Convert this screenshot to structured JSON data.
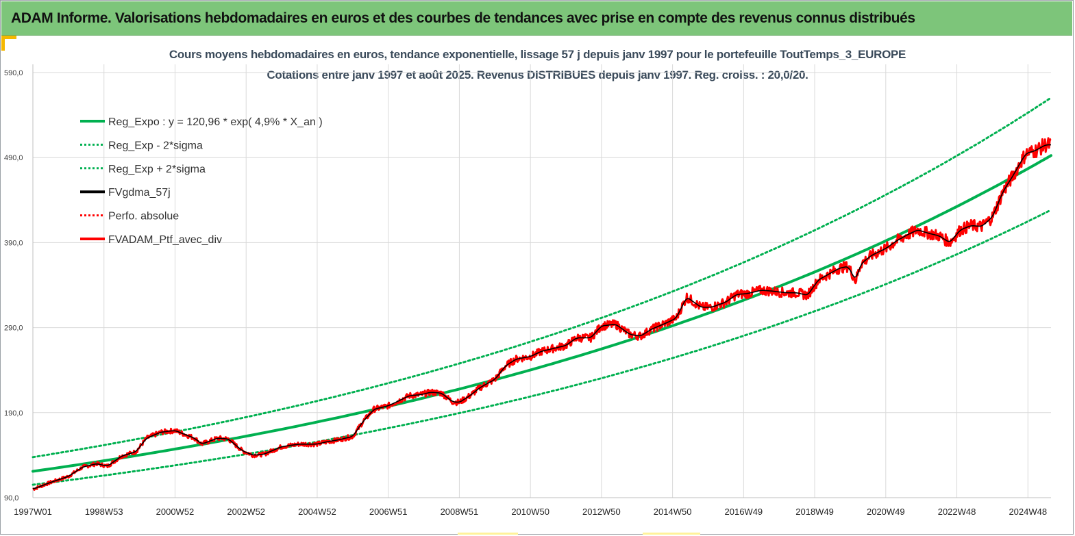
{
  "header": {
    "title": "ADAM Informe. Valorisations hebdomadaires en euros et des courbes de tendances avec prise en compte des revenus connus distribués"
  },
  "chart_data": {
    "type": "line",
    "title": "Cours moyens hebdomadaires  en euros, tendance exponentielle, lissage 57 j depuis janv 1997 pour le portefeuille ToutTemps_3_EUROPE",
    "subtitle": "Cotations  entre janv 1997 et août 2025. Revenus DISTRIBUES depuis janv 1997. Reg. croiss. : 20,0/20.",
    "xlabel": "",
    "ylabel": "",
    "x_range": [
      1997.0,
      2025.65
    ],
    "ylim": [
      90,
      590
    ],
    "y_ticks": [
      "90,0",
      "190,0",
      "290,0",
      "390,0",
      "490,0",
      "590,0"
    ],
    "y_tick_values": [
      90,
      190,
      290,
      390,
      490,
      590
    ],
    "x_ticks": [
      "1997W01",
      "1998W53",
      "2000W52",
      "2002W52",
      "2004W52",
      "2006W51",
      "2008W51",
      "2010W50",
      "2012W50",
      "2014W50",
      "2016W49",
      "2018W49",
      "2020W49",
      "2022W48",
      "2024W48"
    ],
    "x_tick_values": [
      1997.0,
      1999.0,
      2001.0,
      2003.0,
      2005.0,
      2007.0,
      2009.0,
      2011.0,
      2013.0,
      2015.0,
      2017.0,
      2019.0,
      2021.0,
      2023.0,
      2025.0
    ],
    "grid": true,
    "legend_position": "top-left",
    "regression": {
      "a": 120.96,
      "rate": 0.049,
      "sigma_factor_up": 1.138,
      "sigma_factor_down": 0.87
    },
    "series": [
      {
        "name": "Reg_Expo : y = 120,96 * exp( 4,9% *  X_an )",
        "color": "#00b050",
        "style": "solid",
        "width": 4,
        "kind": "regression",
        "factor": 1.0
      },
      {
        "name": "Reg_Exp - 2*sigma",
        "color": "#00b050",
        "style": "dotted",
        "width": 3,
        "kind": "regression",
        "factor": 0.87
      },
      {
        "name": "Reg_Exp + 2*sigma",
        "color": "#00b050",
        "style": "dotted",
        "width": 3,
        "kind": "regression",
        "factor": 1.138
      },
      {
        "name": "FVgdma_57j",
        "color": "#000000",
        "style": "solid",
        "width": 2.5,
        "kind": "data"
      },
      {
        "name": "Perfo. absolue",
        "color": "#ff0000",
        "style": "dotted",
        "width": 3,
        "kind": "none"
      },
      {
        "name": "FVADAM_Ptf_avec_div",
        "color": "#ff0000",
        "style": "solid",
        "width": 4,
        "kind": "data"
      }
    ],
    "points": {
      "x": [
        1997.0,
        1997.5,
        1998.0,
        1998.4,
        1998.8,
        1999.1,
        1999.5,
        1999.9,
        2000.2,
        2000.6,
        2001.0,
        2001.3,
        2001.55,
        2001.75,
        2002.2,
        2002.5,
        2002.9,
        2003.2,
        2003.5,
        2004.0,
        2004.5,
        2005.0,
        2005.3,
        2005.6,
        2006.0,
        2006.3,
        2006.6,
        2007.0,
        2007.3,
        2007.6,
        2007.9,
        2008.2,
        2008.5,
        2008.8,
        2009.0,
        2009.3,
        2009.6,
        2010.0,
        2010.3,
        2010.6,
        2011.0,
        2011.3,
        2011.6,
        2012.0,
        2012.3,
        2012.7,
        2013.0,
        2013.4,
        2013.8,
        2014.1,
        2014.4,
        2014.8,
        2015.1,
        2015.4,
        2015.8,
        2016.1,
        2016.5,
        2016.8,
        2017.1,
        2017.5,
        2017.8,
        2018.2,
        2018.5,
        2018.8,
        2019.1,
        2019.4,
        2019.7,
        2019.95,
        2020.15,
        2020.3,
        2020.6,
        2021.0,
        2021.3,
        2021.6,
        2021.9,
        2022.2,
        2022.5,
        2022.8,
        2023.1,
        2023.4,
        2023.7,
        2024.0,
        2024.3,
        2024.6,
        2024.8,
        2024.95,
        2025.2,
        2025.5,
        2025.65
      ],
      "y": [
        100,
        108,
        115,
        126,
        130,
        127,
        139,
        144,
        160,
        167,
        169,
        164,
        160,
        153,
        160,
        159,
        145,
        140,
        141,
        150,
        153,
        153,
        156,
        158,
        162,
        180,
        194,
        198,
        204,
        210,
        211,
        214,
        213,
        203,
        202,
        210,
        220,
        229,
        245,
        253,
        256,
        262,
        265,
        269,
        278,
        278,
        292,
        294,
        282,
        280,
        288,
        295,
        301,
        326,
        314,
        314,
        320,
        329,
        330,
        334,
        333,
        331,
        331,
        328,
        346,
        353,
        360,
        362,
        345,
        365,
        375,
        383,
        392,
        399,
        405,
        401,
        398,
        390,
        405,
        410,
        409,
        420,
        450,
        470,
        485,
        495,
        498,
        505,
        505
      ]
    }
  }
}
